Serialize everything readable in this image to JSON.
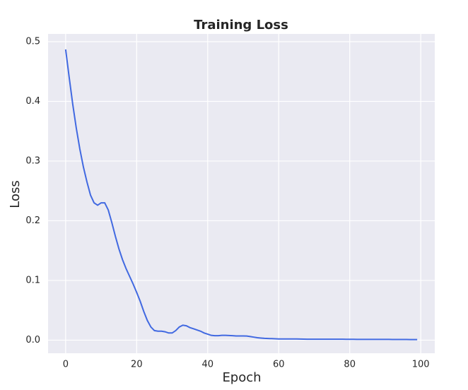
{
  "chart_data": {
    "type": "line",
    "title": "Training Loss",
    "x_label": "Epoch",
    "y_label": "Loss",
    "x": [
      0,
      1,
      2,
      3,
      4,
      5,
      6,
      7,
      8,
      9,
      10,
      11,
      12,
      13,
      14,
      15,
      16,
      17,
      18,
      19,
      20,
      21,
      22,
      23,
      24,
      25,
      26,
      27,
      28,
      29,
      30,
      31,
      32,
      33,
      34,
      35,
      36,
      37,
      38,
      39,
      40,
      41,
      42,
      43,
      44,
      45,
      46,
      47,
      48,
      49,
      50,
      51,
      52,
      53,
      54,
      55,
      56,
      57,
      58,
      59,
      60,
      61,
      62,
      63,
      64,
      65,
      66,
      67,
      68,
      69,
      70,
      71,
      72,
      73,
      74,
      75,
      76,
      77,
      78,
      79,
      80,
      81,
      82,
      83,
      84,
      85,
      86,
      87,
      88,
      89,
      90,
      91,
      92,
      93,
      94,
      95,
      96,
      97,
      98,
      99
    ],
    "values": [
      0.487,
      0.44,
      0.395,
      0.355,
      0.32,
      0.29,
      0.265,
      0.243,
      0.23,
      0.226,
      0.23,
      0.23,
      0.218,
      0.197,
      0.174,
      0.153,
      0.135,
      0.12,
      0.107,
      0.094,
      0.08,
      0.065,
      0.048,
      0.033,
      0.022,
      0.016,
      0.015,
      0.015,
      0.014,
      0.012,
      0.012,
      0.016,
      0.022,
      0.025,
      0.024,
      0.021,
      0.019,
      0.017,
      0.015,
      0.012,
      0.01,
      0.008,
      0.0075,
      0.0075,
      0.008,
      0.008,
      0.0078,
      0.0075,
      0.007,
      0.007,
      0.007,
      0.0068,
      0.006,
      0.005,
      0.004,
      0.0035,
      0.003,
      0.0027,
      0.0025,
      0.0022,
      0.002,
      0.002,
      0.002,
      0.002,
      0.002,
      0.002,
      0.0018,
      0.0016,
      0.0015,
      0.0015,
      0.0015,
      0.0015,
      0.0015,
      0.0015,
      0.0015,
      0.0015,
      0.0015,
      0.0015,
      0.0015,
      0.0014,
      0.0014,
      0.0014,
      0.0013,
      0.0013,
      0.0013,
      0.0013,
      0.0013,
      0.0012,
      0.0012,
      0.0012,
      0.0012,
      0.0012,
      0.0011,
      0.0011,
      0.0011,
      0.0011,
      0.0011,
      0.001,
      0.001,
      0.001
    ],
    "color": "#4169e1",
    "xlim": [
      -4.95,
      103.95
    ],
    "xticks": [
      0,
      20,
      40,
      60,
      80,
      100
    ],
    "ylim": [
      -0.022,
      0.513
    ],
    "yticks": [
      {
        "value": 0,
        "label": "0.0"
      },
      0.1,
      0.2,
      0.3,
      0.4,
      0.5
    ],
    "grid": true
  }
}
